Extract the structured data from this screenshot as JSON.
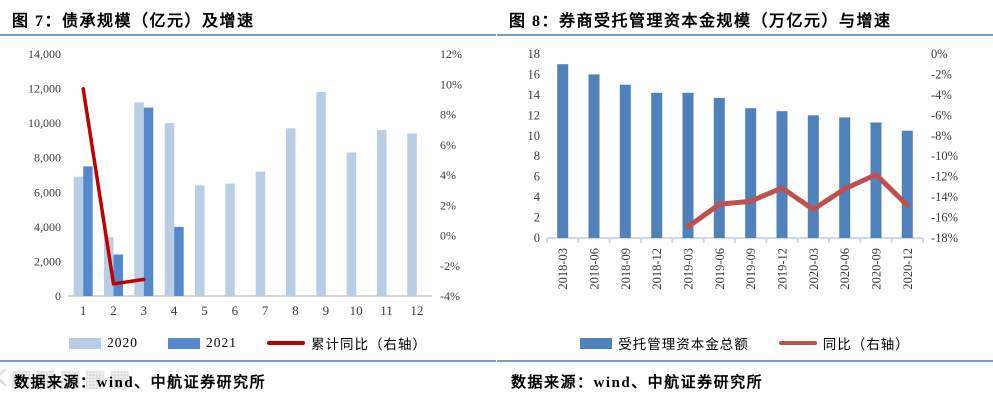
{
  "panels": [
    {
      "title": "图 7：债承规模（亿元）及增速",
      "source": "数据来源：wind、中航证券研究所",
      "legend": [
        {
          "label": "2020",
          "swatch": "bar",
          "color": "#B9CDE5"
        },
        {
          "label": "2021",
          "swatch": "bar",
          "color": "#5588CC"
        },
        {
          "label": "累计同比（右轴）",
          "swatch": "line",
          "color": "#C00000"
        }
      ]
    },
    {
      "title": "图 8：券商受托管理资本金规模（万亿元）与增速",
      "source": "数据来源：wind、中航证券研究所",
      "legend": [
        {
          "label": "受托管理资本金总额",
          "swatch": "bar",
          "color": "#4F81BD"
        },
        {
          "label": "同比（右轴）",
          "swatch": "line",
          "color": "#C0504D"
        }
      ]
    }
  ],
  "watermark": "K▦▦▦▦▦",
  "colors": {
    "title_rule": "#6FA0CE",
    "axis_text": "#3B3B3B",
    "left_baseline": "#D6D6D6",
    "right_baseline": "#CCD9EC"
  },
  "chart_data": [
    {
      "type": "bar",
      "title": "图 7：债承规模（亿元）及增速",
      "categories": [
        "1",
        "2",
        "3",
        "4",
        "5",
        "6",
        "7",
        "8",
        "9",
        "10",
        "11",
        "12"
      ],
      "series": [
        {
          "name": "2020",
          "kind": "bar",
          "axis": "left",
          "color": "#B9CDE5",
          "values": [
            6900,
            3400,
            11200,
            10000,
            6400,
            6500,
            7200,
            9700,
            11800,
            8300,
            9600,
            9400
          ]
        },
        {
          "name": "2021",
          "kind": "bar",
          "axis": "left",
          "color": "#5588CC",
          "values": [
            7500,
            2400,
            10900,
            4000,
            null,
            null,
            null,
            null,
            null,
            null,
            null,
            null
          ]
        },
        {
          "name": "累计同比（右轴）",
          "kind": "line",
          "axis": "right",
          "color": "#C00000",
          "values": [
            9.7,
            -3.2,
            -2.9,
            null,
            null,
            null,
            null,
            null,
            null,
            null,
            null,
            null
          ]
        }
      ],
      "y_left": {
        "min": 0,
        "max": 14000,
        "tick_labels": [
          "14,000",
          "12,000",
          "10,000",
          "8,000",
          "6,000",
          "4,000",
          "2,000",
          "0"
        ]
      },
      "y_right": {
        "min": -4,
        "max": 12,
        "tick_labels": [
          "12%",
          "10%",
          "8%",
          "6%",
          "4%",
          "2%",
          "0%",
          "-2%",
          "-4%"
        ]
      },
      "x_label_rotation": 0,
      "grid": false,
      "legend_position": "bottom"
    },
    {
      "type": "bar",
      "title": "图 8：券商受托管理资本金规模（万亿元）与增速",
      "categories": [
        "2018-03",
        "2018-06",
        "2018-09",
        "2018-12",
        "2019-03",
        "2019-06",
        "2019-09",
        "2019-12",
        "2020-03",
        "2020-06",
        "2020-09",
        "2020-12"
      ],
      "series": [
        {
          "name": "受托管理资本金总额",
          "kind": "bar",
          "axis": "left",
          "color": "#4F81BD",
          "values": [
            17.0,
            16.0,
            15.0,
            14.2,
            14.2,
            13.7,
            12.7,
            12.4,
            12.0,
            11.8,
            11.3,
            10.5
          ]
        },
        {
          "name": "同比（右轴）",
          "kind": "line",
          "axis": "right",
          "color": "#C0504D",
          "values": [
            null,
            null,
            null,
            null,
            -16.9,
            -14.7,
            -14.4,
            -13.1,
            -15.2,
            -13.2,
            -11.8,
            -14.8
          ]
        }
      ],
      "y_left": {
        "min": 0,
        "max": 18,
        "tick_labels": [
          "18",
          "16",
          "14",
          "12",
          "10",
          "8",
          "6",
          "4",
          "2",
          "0"
        ]
      },
      "y_right": {
        "min": -18,
        "max": 0,
        "tick_labels": [
          "0%",
          "-2%",
          "-4%",
          "-6%",
          "-8%",
          "-10%",
          "-12%",
          "-14%",
          "-16%",
          "-18%"
        ]
      },
      "x_label_rotation": -90,
      "grid": false,
      "legend_position": "bottom"
    }
  ]
}
